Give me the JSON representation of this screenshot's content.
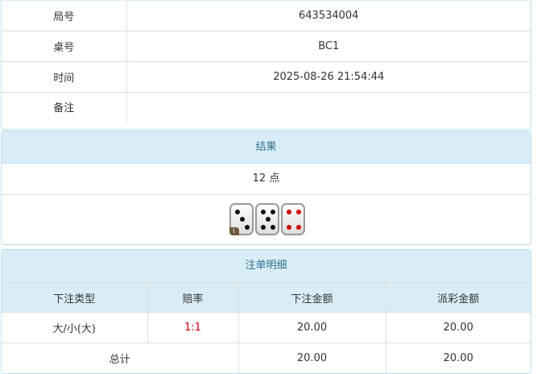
{
  "info": {
    "rows": [
      {
        "label": "局号",
        "value": "643534004"
      },
      {
        "label": "桌号",
        "value": "BC1"
      },
      {
        "label": "时间",
        "value": "2025-08-26 21:54:44"
      },
      {
        "label": "备注",
        "value": ""
      }
    ]
  },
  "result": {
    "title": "结果",
    "points": "12 点",
    "dice": [
      3,
      5,
      4
    ],
    "info_badge": "i"
  },
  "bets": {
    "title": "注单明细",
    "columns": [
      "下注类型",
      "赔率",
      "下注金额",
      "派彩金额"
    ],
    "rows": [
      {
        "type": "大/小(大)",
        "odds": "1:1",
        "amount": "20.00",
        "payout": "20.00"
      }
    ],
    "total": {
      "label": "总计",
      "amount": "20.00",
      "payout": "20.00"
    }
  }
}
